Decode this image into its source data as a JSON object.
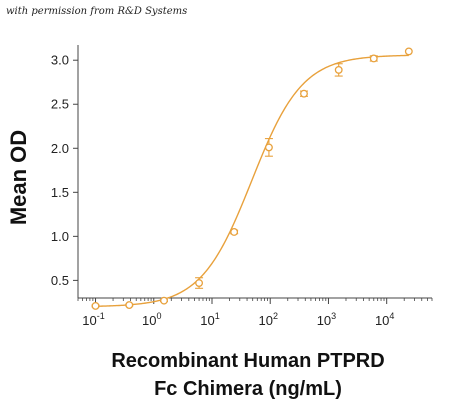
{
  "credit": "with permission from R&D Systems",
  "chart_data": {
    "type": "scatter",
    "title": "",
    "xlabel_line1": "Recombinant Human PTPRD",
    "xlabel_line2": "Fc Chimera (ng/mL)",
    "ylabel": "Mean OD",
    "x_scale": "log",
    "xlim": [
      0.05,
      60000
    ],
    "ylim": [
      0.3,
      3.15
    ],
    "x_ticks": [
      {
        "value": 0.1,
        "base": "10",
        "exp": "-1"
      },
      {
        "value": 1,
        "base": "10",
        "exp": "0"
      },
      {
        "value": 10,
        "base": "10",
        "exp": "1"
      },
      {
        "value": 100,
        "base": "10",
        "exp": "2"
      },
      {
        "value": 1000,
        "base": "10",
        "exp": "3"
      },
      {
        "value": 10000,
        "base": "10",
        "exp": "4"
      }
    ],
    "y_ticks": [
      "0.5",
      "1.0",
      "1.5",
      "2.0",
      "2.5",
      "3.0"
    ],
    "grid": false,
    "legend": "none",
    "color": "#E8A13C",
    "points": [
      {
        "x": 0.1,
        "y": 0.21,
        "err": 0.01
      },
      {
        "x": 0.38,
        "y": 0.22,
        "err": 0.01
      },
      {
        "x": 1.5,
        "y": 0.27,
        "err": 0.01
      },
      {
        "x": 6,
        "y": 0.47,
        "err": 0.06
      },
      {
        "x": 24,
        "y": 1.05,
        "err": 0.02
      },
      {
        "x": 95,
        "y": 2.01,
        "err": 0.1
      },
      {
        "x": 380,
        "y": 2.62,
        "err": 0.03
      },
      {
        "x": 1500,
        "y": 2.89,
        "err": 0.07
      },
      {
        "x": 6000,
        "y": 3.02,
        "err": 0.03
      },
      {
        "x": 24000,
        "y": 3.1,
        "err": 0.0
      }
    ],
    "fit": {
      "bottom": 0.2,
      "top": 3.06,
      "ec50": 48,
      "hill": 1.0
    }
  }
}
